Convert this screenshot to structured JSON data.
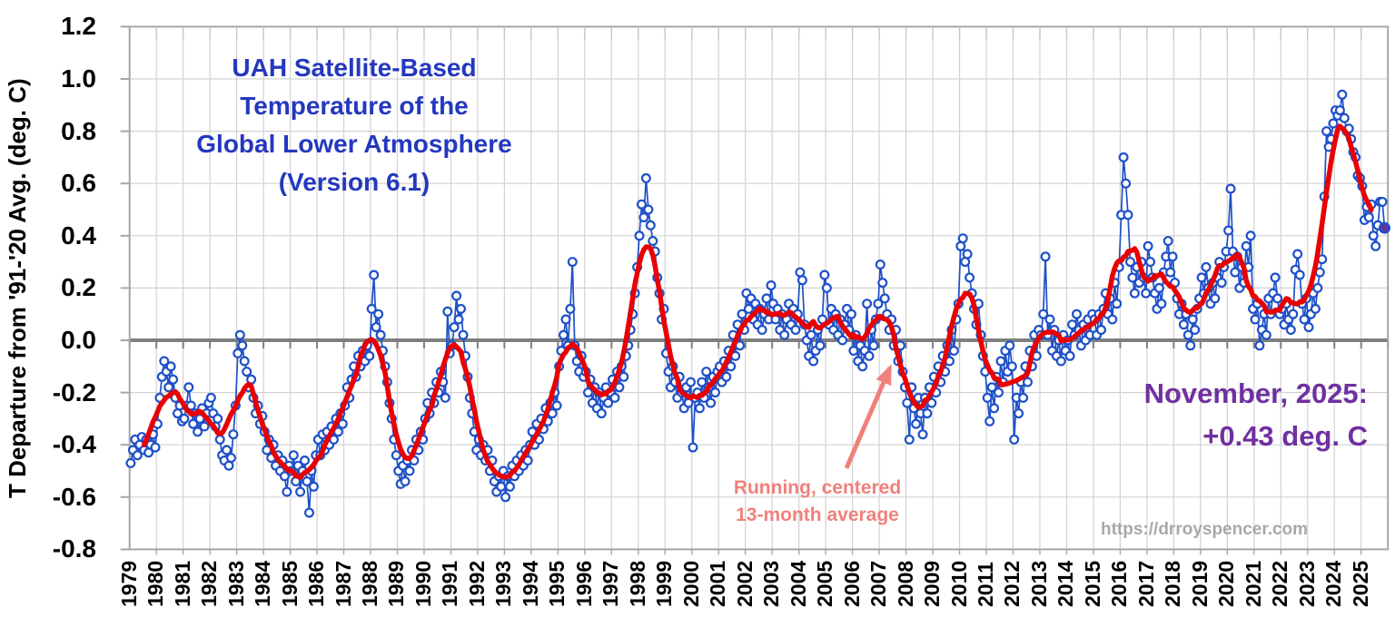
{
  "title": {
    "lines": [
      "UAH Satellite-Based",
      "Temperature of the",
      "Global Lower Atmosphere",
      "(Version 6.1)"
    ]
  },
  "y_axis": {
    "title": "T Departure from '91-'20 Avg. (deg. C)",
    "tick_labels": [
      "1.2",
      "1.0",
      "0.8",
      "0.6",
      "0.4",
      "0.2",
      "0.0",
      "-0.2",
      "-0.4",
      "-0.6",
      "-0.8"
    ]
  },
  "x_axis": {
    "tick_labels": [
      "1979",
      "1980",
      "1981",
      "1982",
      "1983",
      "1984",
      "1985",
      "1986",
      "1987",
      "1988",
      "1989",
      "1990",
      "1991",
      "1992",
      "1993",
      "1994",
      "1995",
      "1996",
      "1997",
      "1998",
      "1999",
      "2000",
      "2001",
      "2002",
      "2003",
      "2004",
      "2005",
      "2006",
      "2007",
      "2008",
      "2009",
      "2010",
      "2011",
      "2012",
      "2013",
      "2014",
      "2015",
      "2016",
      "2017",
      "2018",
      "2019",
      "2020",
      "2021",
      "2022",
      "2023",
      "2024",
      "2025"
    ]
  },
  "annotations": {
    "running_avg": {
      "line1": "Running, centered",
      "line2": "13-month average"
    },
    "latest": {
      "line1": "November, 2025:",
      "line2": "+0.43 deg. C"
    },
    "url": "https://drroyspencer.com"
  },
  "colors": {
    "monthly_line": "#1E50C8",
    "running_avg_line": "#E90000",
    "title_text": "#2438BE",
    "latest_text": "#7030A0",
    "running_avg_text": "#F0807C",
    "url_text": "#A8A8A8",
    "latest_point_fill": "#5C35A0",
    "zero_line": "#7F7F7F",
    "gridline": "#D2D2D2",
    "axis_border": "#A6A6A6",
    "tick_label": "#000000"
  },
  "chart_data": {
    "type": "line",
    "series_name": "Monthly global lower-atmosphere temperature anomaly (deg. C)",
    "smoothing": "Running, centered 13-month average (window = 13)",
    "start_year": 1979,
    "start_month": 1,
    "end_year": 2025,
    "end_month": 11,
    "latest_point": {
      "label": "November, 2025",
      "value": 0.43
    },
    "ylim": [
      -0.8,
      1.2
    ],
    "y_step": 0.2,
    "x_domain": [
      1979,
      2026
    ],
    "grid": true,
    "monthly_values_by_year": [
      [
        -0.47,
        -0.42,
        -0.38,
        -0.44,
        -0.4,
        -0.37,
        -0.42,
        -0.38,
        -0.43,
        -0.4,
        -0.36,
        -0.41
      ],
      [
        -0.32,
        -0.22,
        -0.14,
        -0.08,
        -0.12,
        -0.18,
        -0.1,
        -0.15,
        -0.22,
        -0.28,
        -0.25,
        -0.31
      ],
      [
        -0.3,
        -0.25,
        -0.18,
        -0.25,
        -0.32,
        -0.28,
        -0.35,
        -0.3,
        -0.26,
        -0.33,
        -0.28,
        -0.24
      ],
      [
        -0.22,
        -0.28,
        -0.33,
        -0.3,
        -0.38,
        -0.44,
        -0.46,
        -0.42,
        -0.48,
        -0.45,
        -0.36,
        -0.25
      ],
      [
        -0.05,
        0.02,
        -0.02,
        -0.08,
        -0.12,
        -0.18,
        -0.15,
        -0.22,
        -0.28,
        -0.25,
        -0.32,
        -0.29
      ],
      [
        -0.35,
        -0.42,
        -0.38,
        -0.45,
        -0.4,
        -0.48,
        -0.44,
        -0.5,
        -0.46,
        -0.52,
        -0.58,
        -0.48
      ],
      [
        -0.5,
        -0.44,
        -0.54,
        -0.48,
        -0.58,
        -0.5,
        -0.46,
        -0.54,
        -0.66,
        -0.5,
        -0.56,
        -0.44
      ],
      [
        -0.38,
        -0.44,
        -0.36,
        -0.42,
        -0.35,
        -0.4,
        -0.33,
        -0.38,
        -0.3,
        -0.35,
        -0.28,
        -0.32
      ],
      [
        -0.25,
        -0.18,
        -0.22,
        -0.15,
        -0.1,
        -0.14,
        -0.06,
        -0.1,
        -0.04,
        -0.08,
        -0.02,
        -0.06
      ],
      [
        0.12,
        0.25,
        0.05,
        0.1,
        0.02,
        -0.04,
        -0.1,
        -0.16,
        -0.24,
        -0.3,
        -0.38,
        -0.44
      ],
      [
        -0.5,
        -0.55,
        -0.48,
        -0.54,
        -0.46,
        -0.5,
        -0.42,
        -0.46,
        -0.38,
        -0.42,
        -0.35,
        -0.38
      ],
      [
        -0.3,
        -0.24,
        -0.28,
        -0.2,
        -0.24,
        -0.16,
        -0.2,
        -0.12,
        -0.16,
        -0.22,
        0.11,
        -0.05
      ],
      [
        -0.02,
        0.05,
        0.17,
        0.08,
        0.12,
        0.02,
        -0.06,
        -0.14,
        -0.22,
        -0.28,
        -0.35,
        -0.42
      ],
      [
        -0.38,
        -0.44,
        -0.4,
        -0.46,
        -0.42,
        -0.5,
        -0.46,
        -0.54,
        -0.58,
        -0.52,
        -0.56,
        -0.5
      ],
      [
        -0.6,
        -0.52,
        -0.56,
        -0.48,
        -0.52,
        -0.46,
        -0.5,
        -0.44,
        -0.48,
        -0.42,
        -0.46,
        -0.4
      ],
      [
        -0.35,
        -0.4,
        -0.32,
        -0.38,
        -0.3,
        -0.34,
        -0.26,
        -0.31,
        -0.24,
        -0.28,
        -0.2,
        -0.25
      ],
      [
        -0.1,
        -0.04,
        0.02,
        0.08,
        -0.02,
        0.12,
        0.3,
        -0.02,
        -0.08,
        -0.12,
        -0.06,
        -0.14
      ],
      [
        -0.12,
        -0.2,
        -0.15,
        -0.24,
        -0.18,
        -0.26,
        -0.2,
        -0.28,
        -0.22,
        -0.18,
        -0.24,
        -0.2
      ],
      [
        -0.15,
        -0.22,
        -0.12,
        -0.18,
        -0.1,
        -0.14,
        -0.06,
        -0.02,
        0.04,
        0.1,
        0.18,
        0.28
      ],
      [
        0.4,
        0.52,
        0.47,
        0.62,
        0.5,
        0.44,
        0.38,
        0.34,
        0.24,
        0.18,
        0.08,
        0.12
      ],
      [
        -0.05,
        -0.12,
        -0.18,
        -0.1,
        -0.16,
        -0.22,
        -0.14,
        -0.2,
        -0.26,
        -0.18,
        -0.24,
        -0.16
      ],
      [
        -0.41,
        -0.22,
        -0.2,
        -0.26,
        -0.16,
        -0.22,
        -0.12,
        -0.18,
        -0.24,
        -0.14,
        -0.2,
        -0.12
      ],
      [
        -0.1,
        -0.16,
        -0.08,
        -0.14,
        -0.04,
        -0.1,
        0.02,
        -0.06,
        0.06,
        -0.02,
        0.1,
        0.04
      ],
      [
        0.18,
        0.12,
        0.16,
        0.08,
        0.14,
        0.06,
        0.12,
        0.04,
        0.1,
        0.16,
        0.08,
        0.21
      ],
      [
        0.14,
        0.08,
        0.12,
        0.04,
        0.1,
        0.02,
        0.08,
        0.14,
        0.06,
        0.12,
        0.04,
        0.1
      ],
      [
        0.26,
        0.23,
        0.06,
        0.0,
        -0.06,
        0.02,
        -0.08,
        -0.04,
        0.04,
        -0.02,
        0.08,
        0.25
      ],
      [
        0.2,
        0.06,
        0.12,
        0.04,
        0.1,
        0.02,
        0.08,
        0.0,
        0.06,
        0.12,
        0.04,
        0.1
      ],
      [
        -0.04,
        0.02,
        -0.08,
        -0.02,
        -0.1,
        -0.04,
        0.14,
        -0.06,
        0.04,
        -0.02,
        0.08,
        0.14
      ],
      [
        0.29,
        0.22,
        0.16,
        0.1,
        0.04,
        0.08,
        -0.02,
        0.04,
        -0.08,
        -0.02,
        -0.12,
        -0.18
      ],
      [
        -0.24,
        -0.38,
        -0.18,
        -0.26,
        -0.32,
        -0.22,
        -0.28,
        -0.36,
        -0.22,
        -0.28,
        -0.18,
        -0.24
      ],
      [
        -0.14,
        -0.2,
        -0.1,
        -0.16,
        -0.06,
        -0.12,
        -0.02,
        -0.08,
        0.04,
        -0.04,
        0.08,
        0.14
      ],
      [
        0.36,
        0.39,
        0.3,
        0.33,
        0.24,
        0.18,
        0.12,
        0.06,
        0.14,
        0.02,
        -0.06,
        -0.12
      ],
      [
        -0.22,
        -0.31,
        -0.18,
        -0.26,
        -0.14,
        -0.2,
        -0.08,
        -0.16,
        -0.04,
        -0.12,
        -0.02,
        -0.1
      ],
      [
        -0.38,
        -0.22,
        -0.28,
        -0.16,
        -0.22,
        -0.1,
        -0.16,
        -0.04,
        -0.1,
        0.02,
        -0.06,
        0.04
      ],
      [
        0.02,
        0.1,
        0.32,
        0.02,
        0.08,
        -0.04,
        0.04,
        -0.06,
        0.0,
        -0.08,
        0.02,
        -0.04
      ],
      [
        0.0,
        -0.06,
        0.06,
        0.02,
        0.1,
        0.04,
        -0.02,
        0.06,
        0.0,
        0.08,
        0.02,
        0.1
      ],
      [
        0.08,
        0.02,
        0.1,
        0.04,
        0.12,
        0.18,
        0.1,
        0.16,
        0.08,
        0.22,
        0.14,
        0.28
      ],
      [
        0.48,
        0.7,
        0.6,
        0.48,
        0.3,
        0.24,
        0.18,
        0.28,
        0.22,
        0.3,
        0.24,
        0.18
      ],
      [
        0.36,
        0.3,
        0.24,
        0.18,
        0.12,
        0.2,
        0.14,
        0.26,
        0.32,
        0.38,
        0.26,
        0.32
      ],
      [
        0.22,
        0.16,
        0.1,
        0.14,
        0.06,
        0.1,
        0.02,
        -0.02,
        0.08,
        0.04,
        0.12,
        0.16
      ],
      [
        0.24,
        0.18,
        0.28,
        0.2,
        0.14,
        0.22,
        0.16,
        0.24,
        0.3,
        0.22,
        0.28,
        0.34
      ],
      [
        0.42,
        0.58,
        0.34,
        0.26,
        0.32,
        0.2,
        0.28,
        0.22,
        0.36,
        0.28,
        0.4,
        0.12
      ],
      [
        0.08,
        0.14,
        -0.02,
        0.04,
        0.1,
        0.02,
        0.16,
        0.1,
        0.18,
        0.24,
        0.16,
        0.1
      ],
      [
        0.12,
        0.06,
        0.14,
        0.08,
        0.04,
        0.1,
        0.27,
        0.33,
        0.25,
        0.14,
        0.08,
        0.16
      ],
      [
        0.05,
        0.1,
        0.18,
        0.12,
        0.2,
        0.26,
        0.31,
        0.55,
        0.8,
        0.74,
        0.77,
        0.83
      ],
      [
        0.88,
        0.86,
        0.88,
        0.94,
        0.85,
        0.8,
        0.81,
        0.77,
        0.72,
        0.7,
        0.63,
        0.62
      ],
      [
        0.59,
        0.46,
        0.51,
        0.47,
        0.52,
        0.4,
        0.36,
        0.44,
        0.53,
        0.53,
        0.43
      ]
    ]
  }
}
